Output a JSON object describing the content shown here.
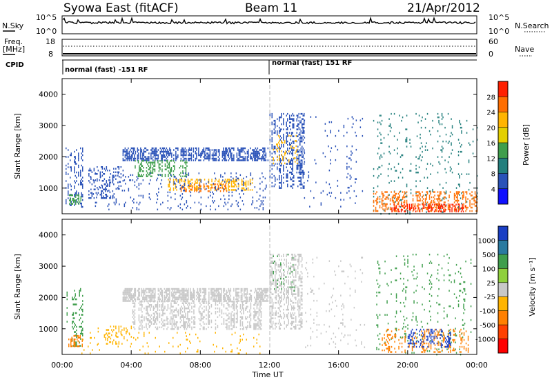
{
  "header": {
    "station": "Syowa East (fitACF)",
    "beam": "Beam 11",
    "date": "21/Apr/2012"
  },
  "noise_panel": {
    "left_label": "N.Sky",
    "right_label": "N.Search",
    "left_ticks": [
      "10^5",
      "10^0"
    ],
    "right_ticks": [
      "10^5",
      "10^0"
    ]
  },
  "freq_panel": {
    "left_label": "Freq.",
    "left_unit": "[MHz]",
    "left_ticks": [
      "18",
      "8"
    ],
    "right_label": "Nave",
    "right_ticks": [
      "60",
      "0"
    ]
  },
  "cpid_panel": {
    "label": "CPID",
    "segments": [
      {
        "start_hour": 0,
        "text": "normal (fast) -151 RF"
      },
      {
        "start_hour": 12,
        "text": "normal (fast) 151 RF"
      }
    ]
  },
  "chart_data": [
    {
      "type": "heatmap",
      "parameter": "Power",
      "ylabel": "Slant Range [km]",
      "colorbar_label": "Power [dB]",
      "colorbar_ticks": [
        "28",
        "24",
        "20",
        "16",
        "12",
        "8",
        "4"
      ],
      "colorbar_colors": [
        "#ff2000",
        "#ff6e00",
        "#ffb400",
        "#e3cf00",
        "#3f9e4c",
        "#237f7d",
        "#2a52b8",
        "#1010ff"
      ],
      "xlim_hours": [
        0,
        24
      ],
      "ylim_km": [
        180,
        4500
      ],
      "ytick_labels": [
        "1000",
        "2000",
        "3000",
        "4000"
      ],
      "echo_regions": [
        {
          "t0": 0.2,
          "t1": 1.2,
          "r0": 400,
          "r1": 2300,
          "color": "#2a52b8",
          "density": 0.35
        },
        {
          "t0": 0.4,
          "t1": 1.1,
          "r0": 500,
          "r1": 800,
          "color": "#3f9e4c",
          "density": 0.5
        },
        {
          "t0": 1.4,
          "t1": 3.5,
          "r0": 700,
          "r1": 1700,
          "color": "#2a52b8",
          "density": 0.28
        },
        {
          "t0": 3.5,
          "t1": 11.9,
          "r0": 1900,
          "r1": 2300,
          "color": "#2a52b8",
          "density": 0.62
        },
        {
          "t0": 4.2,
          "t1": 7.2,
          "r0": 1400,
          "r1": 1900,
          "color": "#3f9e4c",
          "density": 0.5
        },
        {
          "t0": 6.0,
          "t1": 11.0,
          "r0": 950,
          "r1": 1300,
          "color": "#ffb400",
          "density": 0.55
        },
        {
          "t0": 6.5,
          "t1": 9.5,
          "r0": 900,
          "r1": 1150,
          "color": "#ff6e00",
          "density": 0.3
        },
        {
          "t0": 1.6,
          "t1": 11.8,
          "r0": 300,
          "r1": 1500,
          "color": "#2a52b8",
          "density": 0.12
        },
        {
          "t0": 12.0,
          "t1": 14.0,
          "r0": 1000,
          "r1": 3400,
          "color": "#2a52b8",
          "density": 0.38
        },
        {
          "t0": 12.2,
          "t1": 13.6,
          "r0": 1800,
          "r1": 2700,
          "color": "#ffb400",
          "density": 0.22
        },
        {
          "t0": 14.0,
          "t1": 17.5,
          "r0": 400,
          "r1": 3300,
          "color": "#2a52b8",
          "density": 0.05
        },
        {
          "t0": 18.0,
          "t1": 24.0,
          "r0": 200,
          "r1": 3400,
          "color": "#237f7d",
          "density": 0.08
        },
        {
          "t0": 18.0,
          "t1": 24.0,
          "r0": 250,
          "r1": 900,
          "color": "#ff6e00",
          "density": 0.45
        },
        {
          "t0": 19.0,
          "t1": 23.5,
          "r0": 250,
          "r1": 500,
          "color": "#ff2000",
          "density": 0.4
        }
      ]
    },
    {
      "type": "heatmap",
      "parameter": "Velocity",
      "ylabel": "Slant Range [km]",
      "colorbar_label": "Velocity [m s⁻¹]",
      "colorbar_ticks": [
        "1000",
        "500",
        "100",
        "25",
        "-25",
        "-100",
        "-500",
        "-1000"
      ],
      "colorbar_colors": [
        "#1a3fc4",
        "#2a7aa0",
        "#3f9e4c",
        "#8fd03c",
        "#c8c8c8",
        "#ffb400",
        "#ff8000",
        "#ff4000",
        "#ff0000"
      ],
      "xlim_hours": [
        0,
        24
      ],
      "ylim_km": [
        180,
        4500
      ],
      "ytick_labels": [
        "1000",
        "2000",
        "3000",
        "4000"
      ],
      "xtick_labels": [
        "00:00",
        "04:00",
        "08:00",
        "12:00",
        "16:00",
        "20:00",
        "00:00"
      ],
      "xlabel": "Time UT",
      "echo_regions": [
        {
          "t0": 0.2,
          "t1": 1.2,
          "r0": 400,
          "r1": 2300,
          "color": "#3f9e4c",
          "density": 0.25
        },
        {
          "t0": 0.3,
          "t1": 1.2,
          "r0": 450,
          "r1": 800,
          "color": "#ff8000",
          "density": 0.4
        },
        {
          "t0": 2.0,
          "t1": 4.0,
          "r0": 500,
          "r1": 1100,
          "color": "#ffb400",
          "density": 0.3
        },
        {
          "t0": 3.5,
          "t1": 11.9,
          "r0": 1900,
          "r1": 2300,
          "color": "#c8c8c8",
          "density": 0.72
        },
        {
          "t0": 4.0,
          "t1": 11.5,
          "r0": 1000,
          "r1": 1900,
          "color": "#c8c8c8",
          "density": 0.45
        },
        {
          "t0": 1.0,
          "t1": 11.5,
          "r0": 200,
          "r1": 900,
          "color": "#ffb400",
          "density": 0.06
        },
        {
          "t0": 12.0,
          "t1": 14.0,
          "r0": 1000,
          "r1": 3400,
          "color": "#c8c8c8",
          "density": 0.45
        },
        {
          "t0": 12.2,
          "t1": 13.5,
          "r0": 2200,
          "r1": 3400,
          "color": "#3f9e4c",
          "density": 0.15
        },
        {
          "t0": 14.0,
          "t1": 17.5,
          "r0": 400,
          "r1": 3300,
          "color": "#c8c8c8",
          "density": 0.05
        },
        {
          "t0": 18.0,
          "t1": 24.0,
          "r0": 200,
          "r1": 3400,
          "color": "#3f9e4c",
          "density": 0.08
        },
        {
          "t0": 18.5,
          "t1": 23.5,
          "r0": 250,
          "r1": 1000,
          "color": "#ff8000",
          "density": 0.3
        },
        {
          "t0": 20.0,
          "t1": 22.5,
          "r0": 400,
          "r1": 1000,
          "color": "#1a3fc4",
          "density": 0.3
        }
      ]
    }
  ]
}
